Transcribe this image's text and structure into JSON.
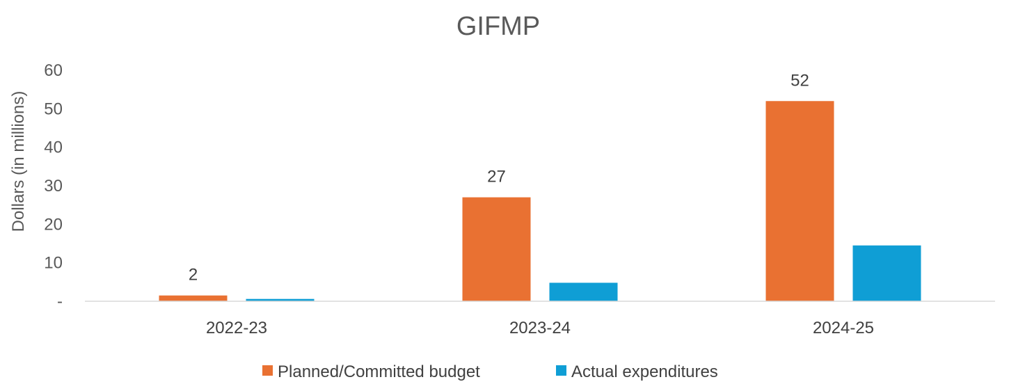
{
  "chart_data": {
    "type": "bar",
    "title": "GIFMP",
    "xlabel": "",
    "ylabel": "Dollars (in millions)",
    "ylim": [
      0,
      60
    ],
    "yticks": [
      {
        "value": 0,
        "label": "-"
      },
      {
        "value": 10,
        "label": "10"
      },
      {
        "value": 20,
        "label": "20"
      },
      {
        "value": 30,
        "label": "30"
      },
      {
        "value": 40,
        "label": "40"
      },
      {
        "value": 50,
        "label": "50"
      },
      {
        "value": 60,
        "label": "60"
      }
    ],
    "categories": [
      "2022-23",
      "2023-24",
      "2024-25"
    ],
    "series": [
      {
        "name": "Planned/Committed budget",
        "color": "#E97132",
        "values": [
          1.5,
          27,
          52
        ],
        "labels": [
          "2",
          "27",
          "52"
        ]
      },
      {
        "name": "Actual expenditures",
        "color": "#0F9ED5",
        "values": [
          0.6,
          4.8,
          14.5
        ],
        "labels": [
          "",
          "",
          ""
        ]
      }
    ],
    "grid": false,
    "legend_position": "bottom"
  }
}
